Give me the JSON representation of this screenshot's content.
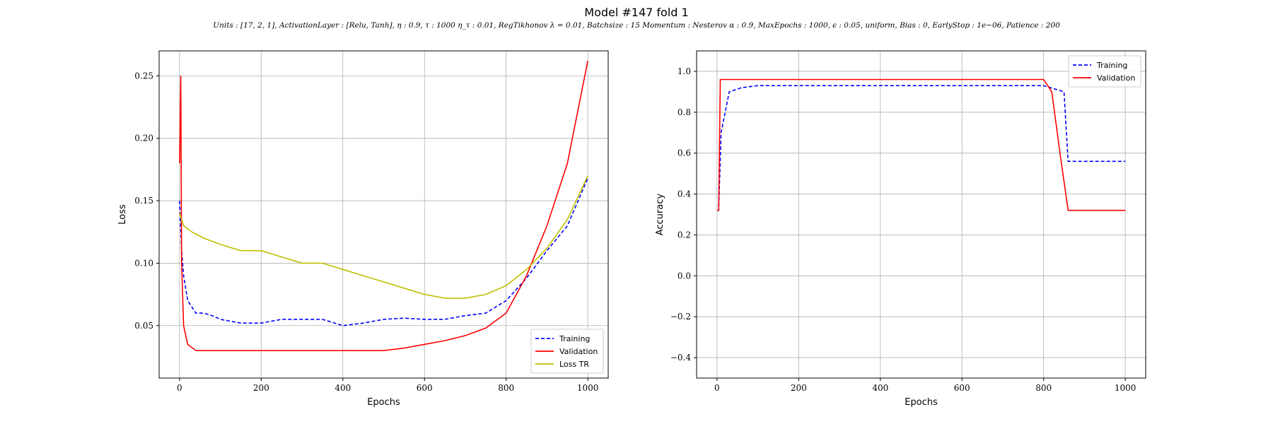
{
  "figure": {
    "title": "Model #147 fold 1",
    "subtitle": "Units : [17, 2, 1], ActivationLayer : [Relu, Tanh], η : 0.9, τ : 1000 η_τ : 0.01, RegTikhonov λ = 0.01, Batchsize : 15 Momentum : Nesterov α : 0.9, MaxEpochs : 1000, ϵ : 0.05, uniform, Bias : 0, EarlyStop : 1e−06, Patience : 200"
  },
  "colors": {
    "training": "#0000ff",
    "validation": "#ff0000",
    "loss_tr": "#bfbf00",
    "grid": "#b0b0b0"
  },
  "chart_data": [
    {
      "type": "line",
      "xlabel": "Epochs",
      "ylabel": "Loss",
      "xlim": [
        -50,
        1050
      ],
      "ylim": [
        0.008,
        0.27
      ],
      "xticks": [
        "0",
        "200",
        "400",
        "600",
        "800",
        "1000"
      ],
      "yticks": [
        "0.05",
        "0.10",
        "0.15",
        "0.20",
        "0.25"
      ],
      "grid": true,
      "legend": "lower-right",
      "series": [
        {
          "name": "Training",
          "style": "dashed",
          "x": [
            0,
            5,
            10,
            20,
            40,
            60,
            80,
            100,
            150,
            200,
            250,
            300,
            350,
            400,
            450,
            500,
            550,
            600,
            650,
            700,
            750,
            800,
            850,
            900,
            950,
            1000
          ],
          "y": [
            0.15,
            0.11,
            0.09,
            0.07,
            0.06,
            0.06,
            0.058,
            0.055,
            0.052,
            0.052,
            0.055,
            0.055,
            0.055,
            0.05,
            0.052,
            0.055,
            0.056,
            0.055,
            0.055,
            0.058,
            0.06,
            0.07,
            0.088,
            0.11,
            0.13,
            0.168
          ]
        },
        {
          "name": "Validation",
          "style": "solid",
          "x": [
            0,
            3,
            5,
            10,
            20,
            40,
            60,
            100,
            150,
            200,
            250,
            300,
            350,
            400,
            450,
            500,
            550,
            600,
            650,
            700,
            750,
            800,
            850,
            900,
            950,
            1000
          ],
          "y": [
            0.18,
            0.25,
            0.1,
            0.05,
            0.035,
            0.03,
            0.03,
            0.03,
            0.03,
            0.03,
            0.03,
            0.03,
            0.03,
            0.03,
            0.03,
            0.03,
            0.032,
            0.035,
            0.038,
            0.042,
            0.048,
            0.06,
            0.09,
            0.13,
            0.18,
            0.262
          ]
        },
        {
          "name": "Loss TR",
          "style": "solid",
          "x": [
            0,
            10,
            30,
            60,
            100,
            150,
            200,
            250,
            300,
            350,
            400,
            450,
            500,
            550,
            600,
            650,
            700,
            750,
            800,
            850,
            900,
            950,
            1000
          ],
          "y": [
            0.14,
            0.13,
            0.125,
            0.12,
            0.115,
            0.11,
            0.11,
            0.105,
            0.1,
            0.1,
            0.095,
            0.09,
            0.085,
            0.08,
            0.075,
            0.072,
            0.072,
            0.075,
            0.082,
            0.095,
            0.112,
            0.135,
            0.17
          ]
        }
      ]
    },
    {
      "type": "line",
      "xlabel": "Epochs",
      "ylabel": "Accuracy",
      "xlim": [
        -50,
        1050
      ],
      "ylim": [
        -0.5,
        1.1
      ],
      "xticks": [
        "0",
        "200",
        "400",
        "600",
        "800",
        "1000"
      ],
      "yticks": [
        "−0.4",
        "−0.2",
        "0.0",
        "0.2",
        "0.4",
        "0.6",
        "0.8",
        "1.0"
      ],
      "grid": true,
      "legend": "upper-right",
      "series": [
        {
          "name": "Training",
          "style": "dashed",
          "x": [
            0,
            4,
            10,
            30,
            60,
            100,
            200,
            300,
            400,
            500,
            600,
            700,
            800,
            850,
            860,
            870,
            1000
          ],
          "y": [
            0.32,
            0.32,
            0.7,
            0.9,
            0.92,
            0.93,
            0.93,
            0.93,
            0.93,
            0.93,
            0.93,
            0.93,
            0.93,
            0.9,
            0.56,
            0.56,
            0.56
          ]
        },
        {
          "name": "Validation",
          "style": "solid",
          "x": [
            0,
            4,
            8,
            20,
            100,
            200,
            300,
            400,
            500,
            600,
            700,
            800,
            820,
            840,
            860,
            1000
          ],
          "y": [
            0.32,
            0.32,
            0.96,
            0.96,
            0.96,
            0.96,
            0.96,
            0.96,
            0.96,
            0.96,
            0.96,
            0.96,
            0.9,
            0.6,
            0.32,
            0.32
          ]
        }
      ]
    }
  ]
}
